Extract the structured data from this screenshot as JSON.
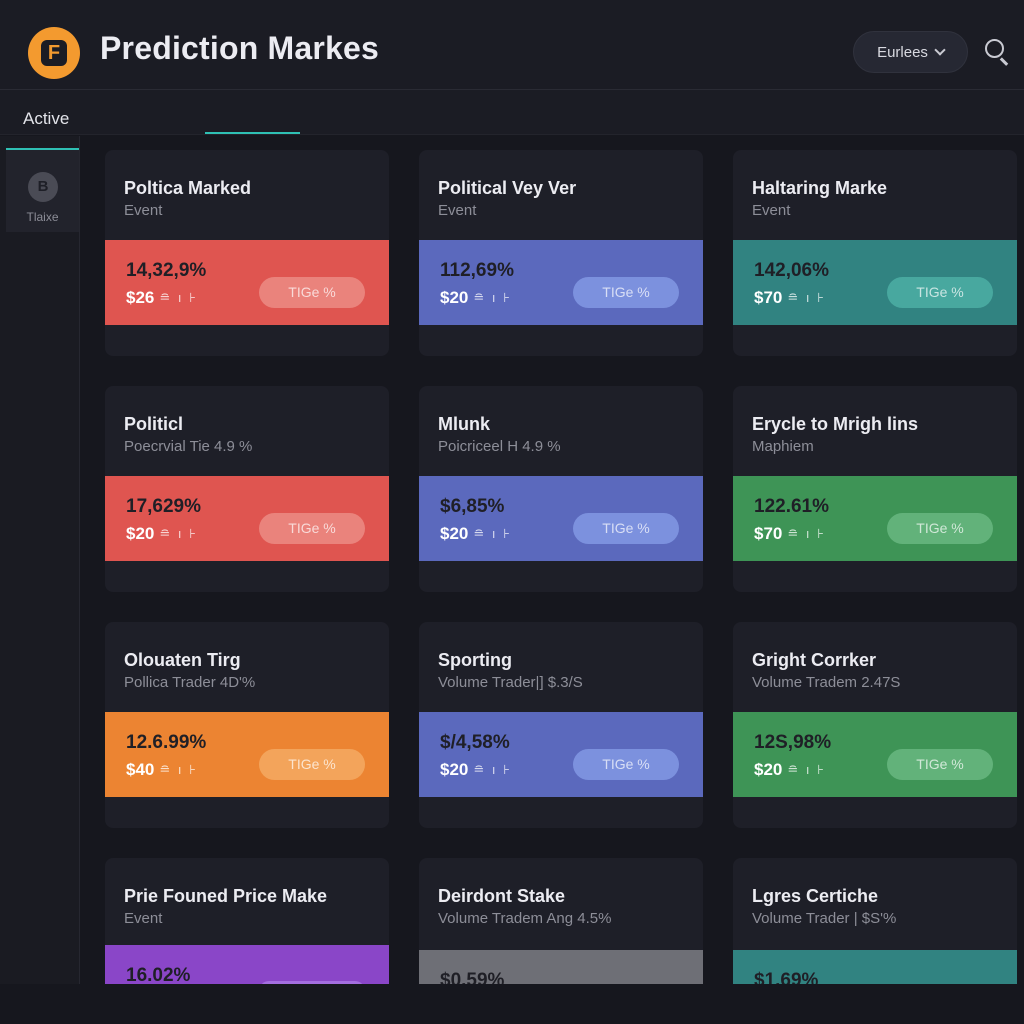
{
  "header": {
    "title": "Prediction Markes",
    "logo_letter": "F",
    "dropdown_label": "Eurlees"
  },
  "tabs": {
    "active_label": "Active"
  },
  "sidebar": {
    "item": {
      "icon_letter": "B",
      "label": "Tlaixe"
    }
  },
  "colors": {
    "accent": "#2fc0b4",
    "logo": "#f39a2f",
    "red": "#df5550",
    "blue": "#5b69bd",
    "teal": "#318381",
    "green": "#3e9456",
    "orange": "#ec8432",
    "purple": "#8a46c8",
    "gray": "#6e6f76"
  },
  "markets": [
    {
      "title": "Poltica Marked",
      "subtitle": "Event",
      "percent": "14,32,9%",
      "price": "$26",
      "button": "TIGe %",
      "color": "red"
    },
    {
      "title": "Political Vey Ver",
      "subtitle": "Event",
      "percent": "112,69%",
      "price": "$20",
      "button": "TIGe %",
      "color": "blue"
    },
    {
      "title": "Haltaring Marke",
      "subtitle": "Event",
      "percent": "142,06%",
      "price": "$70",
      "button": "TIGe %",
      "color": "teal"
    },
    {
      "title": "Politicl",
      "subtitle": "Poecrvial Tie 4.9 %",
      "percent": "17,629%",
      "price": "$20",
      "button": "TIGe %",
      "color": "red"
    },
    {
      "title": "Mlunk",
      "subtitle": "Poicriceel H 4.9 %",
      "percent": "$6,85%",
      "price": "$20",
      "button": "TIGe %",
      "color": "blue"
    },
    {
      "title": "Erycle to Mrigh lins",
      "subtitle": "Maphiem",
      "percent": "122.61%",
      "price": "$70",
      "button": "TIGe %",
      "color": "green"
    },
    {
      "title": "Olouaten Tirg",
      "subtitle": "Pollica Trader 4D'%",
      "percent": "12.6.99%",
      "price": "$40",
      "button": "TIGe %",
      "color": "orange"
    },
    {
      "title": "Sporting",
      "subtitle": "Volume Trader|] $.3/S",
      "percent": "$/4,58%",
      "price": "$20",
      "button": "TIGe %",
      "color": "blue"
    },
    {
      "title": "Gright Corrker",
      "subtitle": "Volume Tradem 2.47S",
      "percent": "12S,98%",
      "price": "$20",
      "button": "TIGe %",
      "color": "green"
    },
    {
      "title": "Prie Founed Price Make",
      "subtitle": "Event",
      "percent": "16.02%",
      "price": "",
      "button": "",
      "color": "purple"
    },
    {
      "title": "Deirdont Stake",
      "subtitle": "Volume Tradem Ang 4.5%",
      "percent": "$0.59%",
      "price": "",
      "button": "",
      "color": "gray"
    },
    {
      "title": "Lgres Certiche",
      "subtitle": "Volume Trader | $S'%",
      "percent": "$1.69%",
      "price": "",
      "button": "",
      "color": "teal"
    }
  ]
}
